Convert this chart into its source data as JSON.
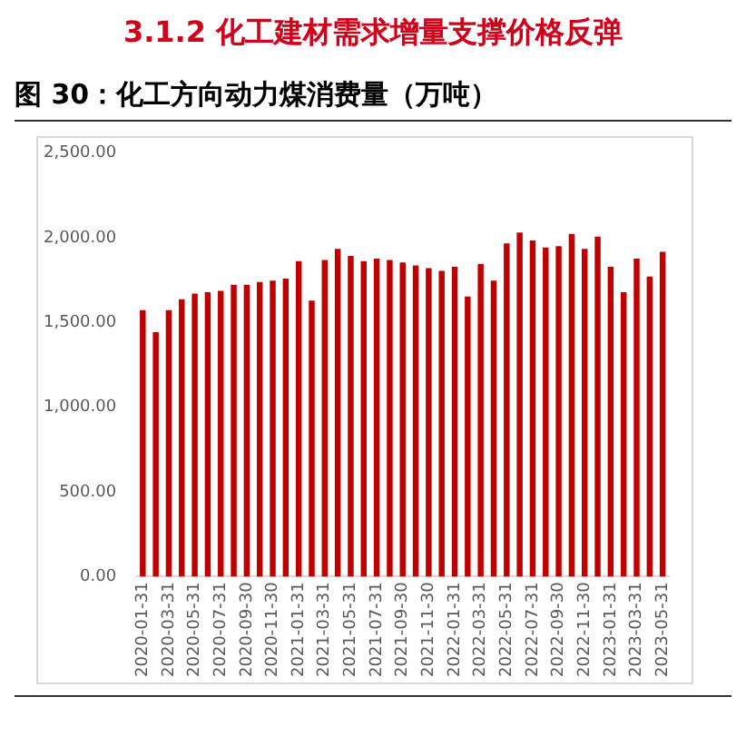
{
  "chart_data": {
    "type": "bar",
    "title": "图 30：化工方向动力煤消费量（万吨）",
    "annotations": [
      "3.1.2 化工建材需求增量支撑价格反弹"
    ],
    "categories": [
      "2020-01-31",
      null,
      "2020-03-31",
      null,
      "2020-05-31",
      null,
      "2020-07-31",
      null,
      "2020-09-30",
      null,
      "2020-11-30",
      null,
      "2021-01-31",
      null,
      "2021-03-31",
      null,
      "2021-05-31",
      null,
      "2021-07-31",
      null,
      "2021-09-30",
      null,
      "2021-11-30",
      null,
      "2022-01-31",
      null,
      "2022-03-31",
      null,
      "2022-05-31",
      null,
      "2022-07-31",
      null,
      "2022-09-30",
      null,
      "2022-11-30",
      null,
      "2023-01-31",
      null,
      "2023-03-31",
      null,
      "2023-05-31"
    ],
    "values": [
      1573,
      1443,
      1573,
      1638,
      1671,
      1679,
      1687,
      1723,
      1723,
      1740,
      1748,
      1760,
      1862,
      1630,
      1870,
      1935,
      1894,
      1862,
      1878,
      1870,
      1854,
      1837,
      1821,
      1805,
      1829,
      1654,
      1846,
      1748,
      1967,
      2032,
      1984,
      1943,
      1951,
      2024,
      1935,
      2008,
      1829,
      1679,
      1878,
      1772,
      1918
    ],
    "color": "#c00000",
    "ylim": [
      0,
      2500
    ],
    "yticks": [
      {
        "value": 0,
        "label": "0.00"
      },
      {
        "value": 500,
        "label": "500.00"
      },
      {
        "value": 1000,
        "label": "1,000.00"
      },
      {
        "value": 1500,
        "label": "1,500.00"
      },
      {
        "value": 2000,
        "label": "2,000.00"
      },
      {
        "value": 2500,
        "label": "2,500.00"
      }
    ]
  }
}
